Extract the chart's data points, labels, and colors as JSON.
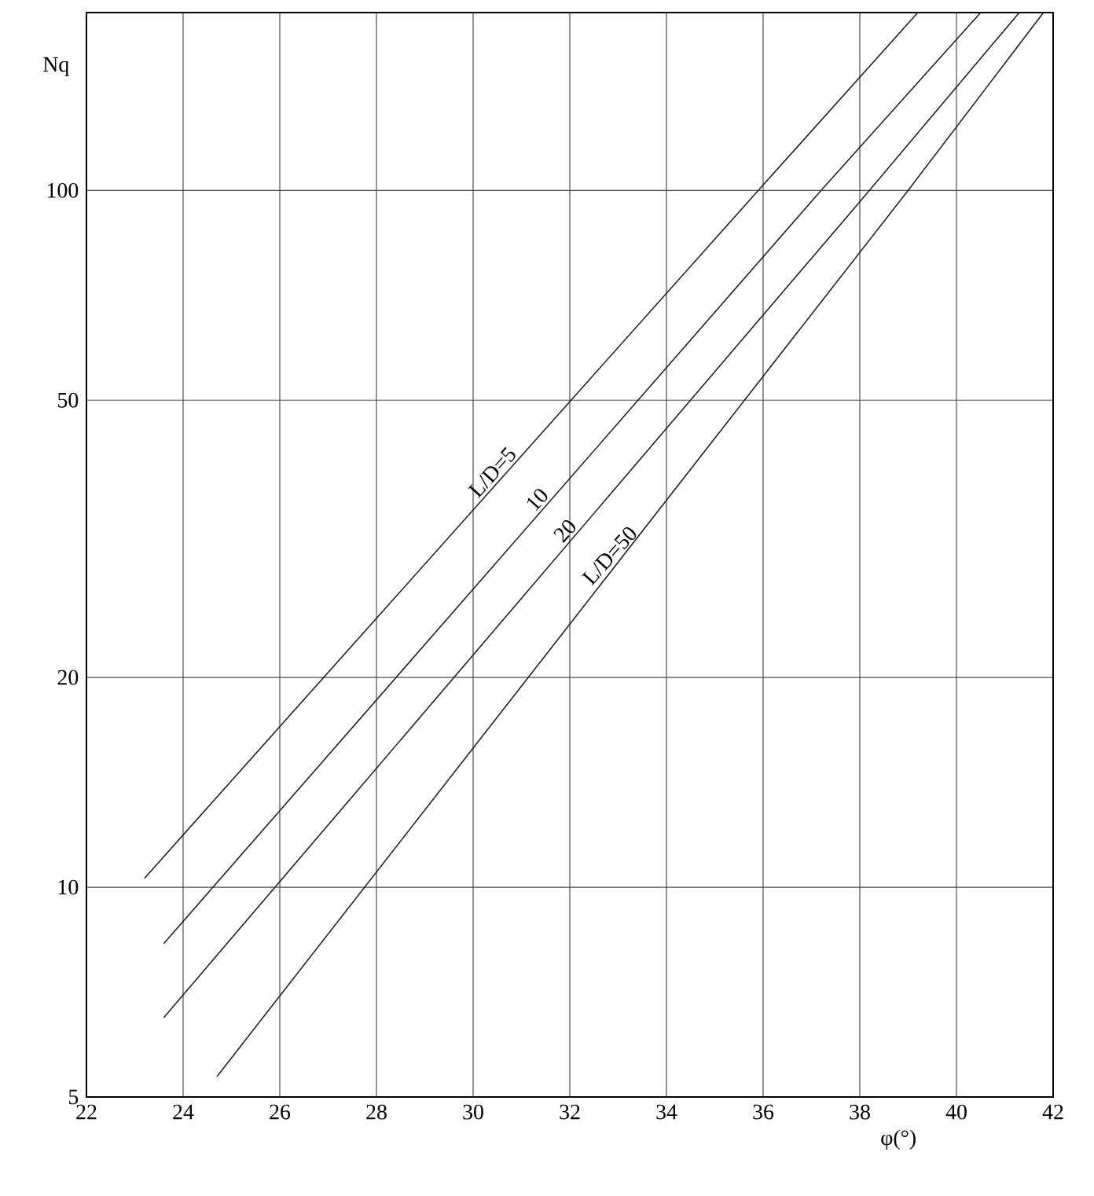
{
  "chart_data": {
    "type": "line",
    "xlabel": "φ(°)",
    "ylabel": "Nq",
    "log": "y",
    "xlim": [
      22,
      42
    ],
    "xticks": [
      22,
      24,
      26,
      28,
      30,
      32,
      34,
      36,
      38,
      40,
      42
    ],
    "ylim": [
      5,
      180
    ],
    "yticks": [
      5,
      10,
      20,
      50,
      100
    ],
    "grid": true,
    "marker": "none",
    "line_style": "solid",
    "series": [
      {
        "color": "#222222",
        "x": [
          23.2,
          35.9,
          39.2
        ],
        "values": [
          10.3,
          100,
          180
        ]
      },
      {
        "color": "#222222",
        "x": [
          23.6,
          37.2,
          40.5
        ],
        "values": [
          8.3,
          100,
          180
        ]
      },
      {
        "color": "#222222",
        "x": [
          23.6,
          38.2,
          41.3
        ],
        "values": [
          6.5,
          100,
          180
        ]
      },
      {
        "color": "#222222",
        "x": [
          24.7,
          39.0,
          41.8
        ],
        "values": [
          5.35,
          100,
          180
        ]
      }
    ],
    "annotations": [
      "L/D=5",
      "10",
      "20",
      "L/D=50"
    ]
  }
}
